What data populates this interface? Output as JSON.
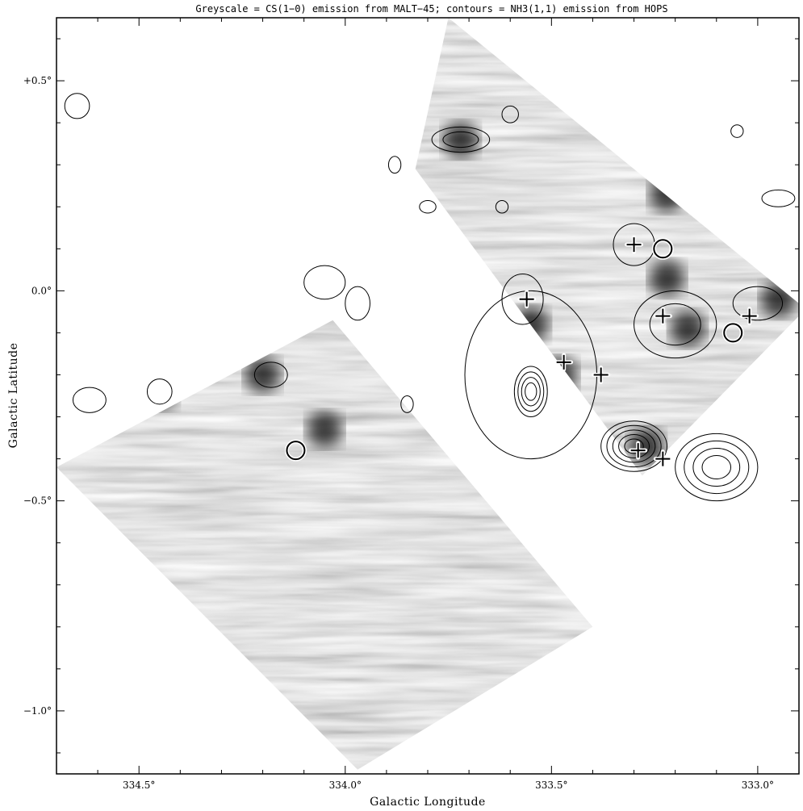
{
  "chart_data": {
    "type": "heatmap",
    "title": "Greyscale = CS(1−0) emission from MALT−45; contours = NH3(1,1) emission from HOPS",
    "xlabel": "Galactic Longitude",
    "ylabel": "Galactic Latitude",
    "xlim": [
      334.7,
      332.9
    ],
    "ylim": [
      -1.15,
      0.65
    ],
    "x_reversed": true,
    "x_ticks": [
      {
        "value": 334.5,
        "label": "334.5°"
      },
      {
        "value": 334.0,
        "label": "334.0°"
      },
      {
        "value": 333.5,
        "label": "333.5°"
      },
      {
        "value": 333.0,
        "label": "333.0°"
      }
    ],
    "y_ticks": [
      {
        "value": 0.5,
        "label": "+0.5°"
      },
      {
        "value": 0.0,
        "label": "0.0°"
      },
      {
        "value": -0.5,
        "label": "−0.5°"
      },
      {
        "value": -1.0,
        "label": "−1.0°"
      }
    ],
    "greyscale_fields": [
      {
        "corners": [
          [
            333.75,
            0.65
          ],
          [
            332.9,
            -0.03
          ],
          [
            332.9,
            -0.06
          ],
          [
            333.28,
            -0.44
          ],
          [
            333.83,
            0.29
          ]
        ]
      },
      {
        "corners": [
          [
            334.03,
            -0.07
          ],
          [
            334.7,
            -0.42
          ],
          [
            333.97,
            -1.14
          ],
          [
            333.4,
            -0.8
          ]
        ]
      }
    ],
    "emission_peaks": [
      {
        "l": 333.72,
        "b": 0.36
      },
      {
        "l": 333.55,
        "b": -0.08
      },
      {
        "l": 333.48,
        "b": -0.2
      },
      {
        "l": 333.27,
        "b": -0.37
      },
      {
        "l": 333.22,
        "b": 0.23
      },
      {
        "l": 333.22,
        "b": 0.03
      },
      {
        "l": 333.17,
        "b": -0.09
      },
      {
        "l": 332.95,
        "b": -0.02
      },
      {
        "l": 334.05,
        "b": -0.33
      },
      {
        "l": 334.2,
        "b": -0.2
      },
      {
        "l": 334.45,
        "b": -0.24
      }
    ],
    "contour_blobs": [
      {
        "l": 333.72,
        "b": 0.36,
        "rl": 0.07,
        "rb": 0.03,
        "levels": 2
      },
      {
        "l": 333.57,
        "b": -0.02,
        "rl": 0.05,
        "rb": 0.06,
        "levels": 1
      },
      {
        "l": 333.3,
        "b": 0.11,
        "rl": 0.05,
        "rb": 0.05,
        "levels": 1
      },
      {
        "l": 333.2,
        "b": -0.08,
        "rl": 0.1,
        "rb": 0.08,
        "levels": 2
      },
      {
        "l": 333.0,
        "b": -0.03,
        "rl": 0.06,
        "rb": 0.04,
        "levels": 1
      },
      {
        "l": 333.55,
        "b": -0.24,
        "rl": 0.04,
        "rb": 0.06,
        "levels": 4
      },
      {
        "l": 333.55,
        "b": -0.2,
        "rl": 0.16,
        "rb": 0.2,
        "levels": 1
      },
      {
        "l": 333.3,
        "b": -0.37,
        "rl": 0.08,
        "rb": 0.06,
        "levels": 5
      },
      {
        "l": 333.1,
        "b": -0.42,
        "rl": 0.1,
        "rb": 0.08,
        "levels": 4
      },
      {
        "l": 334.05,
        "b": 0.02,
        "rl": 0.05,
        "rb": 0.04,
        "levels": 1
      },
      {
        "l": 333.97,
        "b": -0.03,
        "rl": 0.03,
        "rb": 0.04,
        "levels": 1
      },
      {
        "l": 334.18,
        "b": -0.2,
        "rl": 0.04,
        "rb": 0.03,
        "levels": 1
      },
      {
        "l": 334.45,
        "b": -0.24,
        "rl": 0.03,
        "rb": 0.03,
        "levels": 1
      },
      {
        "l": 334.62,
        "b": -0.26,
        "rl": 0.04,
        "rb": 0.03,
        "levels": 1
      },
      {
        "l": 334.65,
        "b": 0.44,
        "rl": 0.03,
        "rb": 0.03,
        "levels": 1
      },
      {
        "l": 332.95,
        "b": 0.22,
        "rl": 0.04,
        "rb": 0.02,
        "levels": 1
      },
      {
        "l": 333.6,
        "b": 0.42,
        "rl": 0.02,
        "rb": 0.02,
        "levels": 1
      },
      {
        "l": 333.88,
        "b": 0.3,
        "rl": 0.015,
        "rb": 0.02,
        "levels": 1
      },
      {
        "l": 333.8,
        "b": 0.2,
        "rl": 0.02,
        "rb": 0.015,
        "levels": 1
      },
      {
        "l": 333.62,
        "b": 0.2,
        "rl": 0.015,
        "rb": 0.015,
        "levels": 1
      },
      {
        "l": 333.05,
        "b": 0.38,
        "rl": 0.015,
        "rb": 0.015,
        "levels": 1
      },
      {
        "l": 333.85,
        "b": -0.27,
        "rl": 0.015,
        "rb": 0.02,
        "levels": 1
      }
    ],
    "crosses": [
      {
        "l": 333.56,
        "b": -0.02
      },
      {
        "l": 333.47,
        "b": -0.17
      },
      {
        "l": 333.38,
        "b": -0.2
      },
      {
        "l": 333.3,
        "b": 0.11
      },
      {
        "l": 333.23,
        "b": -0.06
      },
      {
        "l": 333.29,
        "b": -0.38
      },
      {
        "l": 333.23,
        "b": -0.4
      },
      {
        "l": 333.02,
        "b": -0.06
      }
    ],
    "circles": [
      {
        "l": 333.23,
        "b": 0.1
      },
      {
        "l": 333.06,
        "b": -0.1
      },
      {
        "l": 334.12,
        "b": -0.38
      }
    ]
  }
}
